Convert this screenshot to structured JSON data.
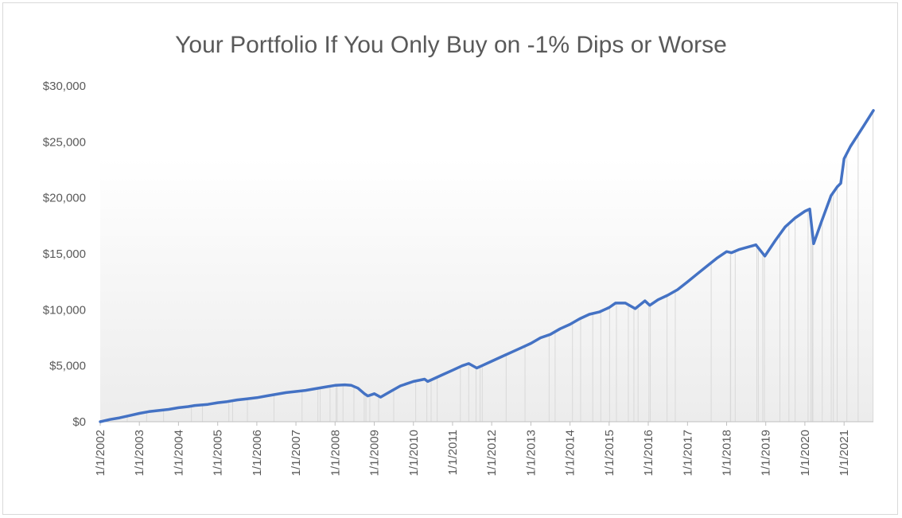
{
  "chart_data": {
    "type": "area",
    "title": "Your Portfolio If You Only Buy on -1% Dips or Worse",
    "xlabel": "",
    "ylabel": "",
    "x_tick_labels": [
      "1/1/2002",
      "1/1/2003",
      "1/1/2004",
      "1/1/2005",
      "1/1/2006",
      "1/1/2007",
      "1/1/2008",
      "1/1/2009",
      "1/1/2010",
      "1/1/2011",
      "1/1/2012",
      "1/1/2013",
      "1/1/2014",
      "1/1/2015",
      "1/1/2016",
      "1/1/2017",
      "1/1/2018",
      "1/1/2019",
      "1/1/2020",
      "1/1/2021"
    ],
    "y_tick_labels": [
      "$0",
      "$5,000",
      "$10,000",
      "$15,000",
      "$20,000",
      "$25,000",
      "$30,000"
    ],
    "ylim": [
      0,
      30000
    ],
    "xlim": [
      "2002-01-01",
      "2021-10-01"
    ],
    "legend": "none",
    "grid": false,
    "colors": {
      "line": "#4472c4",
      "drop_lines": "#d9d9d9",
      "area_top": "#ffffff",
      "area_bottom": "#ececec",
      "text": "#595959",
      "axis": "#bfbfbf"
    },
    "series": [
      {
        "x": [
          "2002-01-01",
          "2002-04-01",
          "2002-07-01",
          "2002-10-01",
          "2003-01-01",
          "2003-04-01",
          "2003-07-01",
          "2003-10-01",
          "2004-01-01",
          "2004-04-01",
          "2004-06-01",
          "2004-10-01",
          "2005-01-01",
          "2005-04-01",
          "2005-07-01",
          "2005-10-01",
          "2006-01-01",
          "2006-04-01",
          "2006-07-01",
          "2006-10-01",
          "2007-01-01",
          "2007-04-01",
          "2007-07-01",
          "2007-10-01",
          "2008-01-01",
          "2008-04-01",
          "2008-06-01",
          "2008-08-01",
          "2008-10-01",
          "2008-11-01",
          "2009-01-01",
          "2009-03-01",
          "2009-06-01",
          "2009-09-01",
          "2010-01-01",
          "2010-04-15",
          "2010-05-15",
          "2010-07-01",
          "2010-10-01",
          "2011-01-01",
          "2011-04-01",
          "2011-06-01",
          "2011-08-15",
          "2011-10-01",
          "2012-01-01",
          "2012-04-01",
          "2012-07-01",
          "2012-10-01",
          "2013-01-01",
          "2013-04-01",
          "2013-07-01",
          "2013-10-01",
          "2014-01-01",
          "2014-04-01",
          "2014-07-01",
          "2014-10-01",
          "2015-01-01",
          "2015-03-01",
          "2015-06-01",
          "2015-09-01",
          "2015-12-01",
          "2016-01-15",
          "2016-04-01",
          "2016-07-01",
          "2016-10-01",
          "2017-01-01",
          "2017-04-01",
          "2017-07-01",
          "2017-10-01",
          "2018-01-01",
          "2018-02-15",
          "2018-05-01",
          "2018-10-01",
          "2018-12-24",
          "2019-04-01",
          "2019-07-01",
          "2019-10-01",
          "2020-01-01",
          "2020-02-15",
          "2020-03-23",
          "2020-06-01",
          "2020-09-01",
          "2020-10-30",
          "2020-12-01",
          "2021-01-01",
          "2021-03-01",
          "2021-07-01",
          "2021-10-01"
        ],
        "values": [
          0,
          200,
          350,
          550,
          750,
          900,
          1000,
          1100,
          1250,
          1350,
          1450,
          1550,
          1700,
          1800,
          1950,
          2050,
          2150,
          2300,
          2450,
          2600,
          2700,
          2800,
          2950,
          3100,
          3250,
          3300,
          3250,
          3000,
          2500,
          2300,
          2500,
          2200,
          2700,
          3200,
          3600,
          3800,
          3600,
          3800,
          4200,
          4600,
          5000,
          5200,
          4800,
          5000,
          5400,
          5800,
          6200,
          6600,
          7000,
          7500,
          7800,
          8300,
          8700,
          9200,
          9600,
          9800,
          10200,
          10600,
          10600,
          10100,
          10800,
          10400,
          10900,
          11300,
          11800,
          12500,
          13200,
          13900,
          14600,
          15200,
          15100,
          15400,
          15800,
          14800,
          16200,
          17400,
          18200,
          18800,
          19000,
          15900,
          17800,
          20200,
          21000,
          21300,
          23500,
          24600,
          26400,
          27800
        ]
      }
    ],
    "drop_line_dates": [
      "2002-01-15",
      "2002-09-10",
      "2003-03-10",
      "2003-08-15",
      "2004-05-01",
      "2004-08-12",
      "2005-04-15",
      "2005-05-20",
      "2005-10-05",
      "2006-06-10",
      "2007-02-27",
      "2007-07-25",
      "2007-08-15",
      "2007-11-15",
      "2008-01-10",
      "2008-01-21",
      "2008-03-15",
      "2008-06-25",
      "2008-09-29",
      "2008-10-15",
      "2008-11-20",
      "2009-02-10",
      "2009-07-01",
      "2010-01-22",
      "2010-05-06",
      "2010-06-15",
      "2010-08-11",
      "2011-03-15",
      "2011-06-01",
      "2011-08-08",
      "2011-09-15",
      "2011-10-05",
      "2012-05-15",
      "2012-11-07",
      "2013-06-20",
      "2013-08-15",
      "2014-01-24",
      "2014-04-10",
      "2014-08-01",
      "2014-10-15",
      "2015-01-05",
      "2015-03-10",
      "2015-06-29",
      "2015-08-20",
      "2015-09-28",
      "2016-01-07",
      "2016-01-20",
      "2016-06-24",
      "2016-09-09",
      "2017-08-10",
      "2018-02-05",
      "2018-02-08",
      "2018-03-22",
      "2018-10-10",
      "2018-10-24",
      "2018-12-04",
      "2018-12-20",
      "2019-05-13",
      "2019-08-05",
      "2019-10-02",
      "2020-01-31",
      "2020-02-25",
      "2020-03-09",
      "2020-03-16",
      "2020-06-11",
      "2020-09-03",
      "2020-09-23",
      "2020-10-28",
      "2021-01-27",
      "2021-05-12",
      "2021-09-28"
    ]
  }
}
